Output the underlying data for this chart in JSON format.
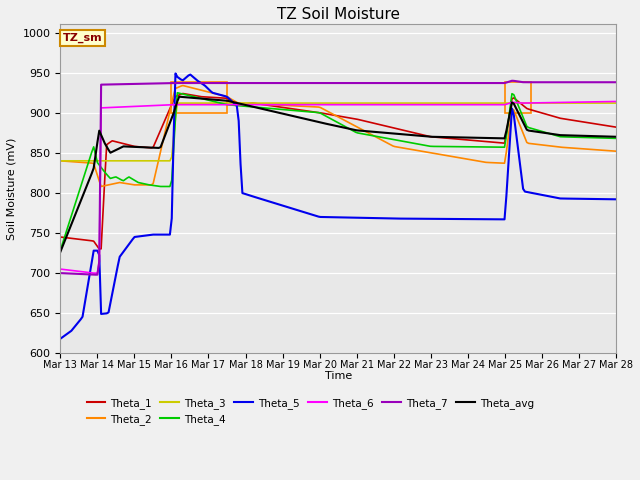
{
  "title": "TZ Soil Moisture",
  "xlabel": "Time",
  "ylabel": "Soil Moisture (mV)",
  "ylim": [
    600,
    1010
  ],
  "yticks": [
    600,
    650,
    700,
    750,
    800,
    850,
    900,
    950,
    1000
  ],
  "plot_bg_color": "#e8e8e8",
  "fig_bg_color": "#f0f0f0",
  "legend_label": "TZ_sm",
  "series_colors": {
    "Theta_1": "#cc0000",
    "Theta_2": "#ff8800",
    "Theta_3": "#cccc00",
    "Theta_4": "#00cc00",
    "Theta_5": "#0000ee",
    "Theta_6": "#ff00ff",
    "Theta_7": "#9900bb",
    "Theta_avg": "#000000"
  },
  "xtick_labels": [
    "Mar 13",
    "Mar 14",
    "Mar 15",
    "Mar 16",
    "Mar 17",
    "Mar 18",
    "Mar 19",
    "Mar 20",
    "Mar 21",
    "Mar 22",
    "Mar 23",
    "Mar 24",
    "Mar 25",
    "Mar 26",
    "Mar 27",
    "Mar 28"
  ],
  "num_points": 300
}
